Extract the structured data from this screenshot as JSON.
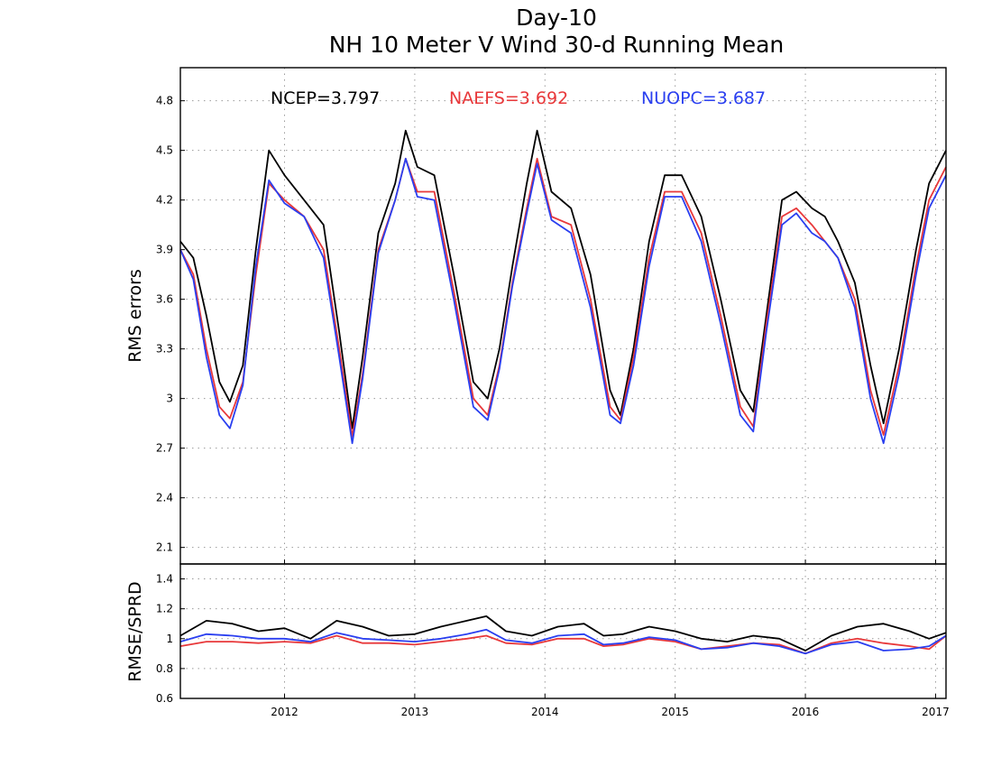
{
  "title_line1": "Day-10",
  "title_line2": "NH 10 Meter V Wind 30-d Running Mean",
  "chart_data": [
    {
      "type": "line",
      "ylabel": "RMS errors",
      "ylim": [
        2.0,
        5.0
      ],
      "yticks": [
        "2.1",
        "2.4",
        "2.7",
        "3",
        "3.3",
        "3.6",
        "3.9",
        "4.2",
        "4.5",
        "4.8"
      ],
      "xlim": [
        2011.2,
        2017.08
      ],
      "grid": true,
      "legend_placement": "top",
      "legend": [
        {
          "label": "NCEP=3.797",
          "color": "#000000"
        },
        {
          "label": "NAEFS=3.692",
          "color": "#e8383a"
        },
        {
          "label": "NUOPC=3.687",
          "color": "#2a3ff0"
        }
      ],
      "series": [
        {
          "name": "NCEP",
          "color": "#000000",
          "x": [
            2011.2,
            2011.3,
            2011.4,
            2011.5,
            2011.58,
            2011.68,
            2011.78,
            2011.88,
            2012.0,
            2012.15,
            2012.3,
            2012.42,
            2012.52,
            2012.6,
            2012.72,
            2012.85,
            2012.93,
            2013.02,
            2013.15,
            2013.3,
            2013.45,
            2013.56,
            2013.65,
            2013.75,
            2013.86,
            2013.94,
            2014.05,
            2014.2,
            2014.35,
            2014.5,
            2014.58,
            2014.68,
            2014.8,
            2014.92,
            2015.05,
            2015.2,
            2015.35,
            2015.5,
            2015.6,
            2015.7,
            2015.82,
            2015.93,
            2016.05,
            2016.15,
            2016.25,
            2016.38,
            2016.5,
            2016.6,
            2016.72,
            2016.85,
            2016.95,
            2017.08
          ],
          "values": [
            3.95,
            3.85,
            3.5,
            3.1,
            2.98,
            3.2,
            3.9,
            4.5,
            4.35,
            4.2,
            4.05,
            3.4,
            2.82,
            3.25,
            4.0,
            4.3,
            4.62,
            4.4,
            4.35,
            3.75,
            3.1,
            3.0,
            3.3,
            3.8,
            4.3,
            4.62,
            4.25,
            4.15,
            3.75,
            3.05,
            2.9,
            3.3,
            3.95,
            4.35,
            4.35,
            4.1,
            3.6,
            3.05,
            2.92,
            3.5,
            4.2,
            4.25,
            4.15,
            4.1,
            3.95,
            3.7,
            3.2,
            2.85,
            3.3,
            3.9,
            4.3,
            4.5
          ]
        },
        {
          "name": "NAEFS",
          "color": "#e8383a",
          "x": [
            2011.2,
            2011.3,
            2011.4,
            2011.5,
            2011.58,
            2011.68,
            2011.78,
            2011.88,
            2012.0,
            2012.15,
            2012.3,
            2012.42,
            2012.52,
            2012.6,
            2012.72,
            2012.85,
            2012.93,
            2013.02,
            2013.15,
            2013.3,
            2013.45,
            2013.56,
            2013.65,
            2013.75,
            2013.86,
            2013.94,
            2014.05,
            2014.2,
            2014.35,
            2014.5,
            2014.58,
            2014.68,
            2014.8,
            2014.92,
            2015.05,
            2015.2,
            2015.35,
            2015.5,
            2015.6,
            2015.7,
            2015.82,
            2015.93,
            2016.05,
            2016.15,
            2016.25,
            2016.38,
            2016.5,
            2016.6,
            2016.72,
            2016.85,
            2016.95,
            2017.08
          ],
          "values": [
            3.9,
            3.75,
            3.3,
            2.95,
            2.88,
            3.1,
            3.75,
            4.3,
            4.2,
            4.1,
            3.9,
            3.3,
            2.77,
            3.15,
            3.9,
            4.2,
            4.45,
            4.25,
            4.25,
            3.65,
            3.0,
            2.9,
            3.2,
            3.7,
            4.15,
            4.45,
            4.1,
            4.05,
            3.6,
            2.95,
            2.87,
            3.25,
            3.85,
            4.25,
            4.25,
            4.0,
            3.5,
            2.95,
            2.83,
            3.45,
            4.1,
            4.15,
            4.05,
            3.95,
            3.85,
            3.6,
            3.05,
            2.78,
            3.2,
            3.8,
            4.2,
            4.4
          ]
        },
        {
          "name": "NUOPC",
          "color": "#2a3ff0",
          "x": [
            2011.2,
            2011.3,
            2011.4,
            2011.5,
            2011.58,
            2011.68,
            2011.78,
            2011.88,
            2012.0,
            2012.15,
            2012.3,
            2012.42,
            2012.52,
            2012.6,
            2012.72,
            2012.85,
            2012.93,
            2013.02,
            2013.15,
            2013.3,
            2013.45,
            2013.56,
            2013.65,
            2013.75,
            2013.86,
            2013.94,
            2014.05,
            2014.2,
            2014.35,
            2014.5,
            2014.58,
            2014.68,
            2014.8,
            2014.92,
            2015.05,
            2015.2,
            2015.35,
            2015.5,
            2015.6,
            2015.7,
            2015.82,
            2015.93,
            2016.05,
            2016.15,
            2016.25,
            2016.38,
            2016.5,
            2016.6,
            2016.72,
            2016.85,
            2016.95,
            2017.08
          ],
          "values": [
            3.9,
            3.72,
            3.25,
            2.9,
            2.82,
            3.08,
            3.8,
            4.32,
            4.18,
            4.1,
            3.85,
            3.25,
            2.73,
            3.12,
            3.88,
            4.2,
            4.45,
            4.22,
            4.2,
            3.6,
            2.95,
            2.87,
            3.18,
            3.68,
            4.12,
            4.42,
            4.08,
            4.0,
            3.55,
            2.9,
            2.85,
            3.2,
            3.8,
            4.22,
            4.22,
            3.95,
            3.45,
            2.9,
            2.8,
            3.4,
            4.05,
            4.12,
            4.0,
            3.95,
            3.85,
            3.55,
            3.0,
            2.73,
            3.15,
            3.75,
            4.15,
            4.35
          ]
        }
      ]
    },
    {
      "type": "line",
      "ylabel": "RMSE/SPRD",
      "ylim": [
        0.6,
        1.5
      ],
      "yticks": [
        "0.6",
        "0.8",
        "1",
        "1.2",
        "1.4"
      ],
      "xlim": [
        2011.2,
        2017.08
      ],
      "xticks": [
        "2012",
        "2013",
        "2014",
        "2015",
        "2016",
        "2017"
      ],
      "grid": true,
      "series": [
        {
          "name": "NCEP",
          "color": "#000000",
          "x": [
            2011.2,
            2011.4,
            2011.6,
            2011.8,
            2012.0,
            2012.2,
            2012.4,
            2012.6,
            2012.8,
            2013.0,
            2013.2,
            2013.4,
            2013.55,
            2013.7,
            2013.9,
            2014.1,
            2014.3,
            2014.45,
            2014.6,
            2014.8,
            2015.0,
            2015.2,
            2015.4,
            2015.6,
            2015.8,
            2016.0,
            2016.2,
            2016.4,
            2016.6,
            2016.8,
            2016.95,
            2017.08
          ],
          "values": [
            1.02,
            1.12,
            1.1,
            1.05,
            1.07,
            1.0,
            1.12,
            1.08,
            1.02,
            1.03,
            1.08,
            1.12,
            1.15,
            1.05,
            1.02,
            1.08,
            1.1,
            1.02,
            1.03,
            1.08,
            1.05,
            1.0,
            0.98,
            1.02,
            1.0,
            0.92,
            1.02,
            1.08,
            1.1,
            1.05,
            1.0,
            1.04
          ]
        },
        {
          "name": "NAEFS",
          "color": "#e8383a",
          "x": [
            2011.2,
            2011.4,
            2011.6,
            2011.8,
            2012.0,
            2012.2,
            2012.4,
            2012.6,
            2012.8,
            2013.0,
            2013.2,
            2013.4,
            2013.55,
            2013.7,
            2013.9,
            2014.1,
            2014.3,
            2014.45,
            2014.6,
            2014.8,
            2015.0,
            2015.2,
            2015.4,
            2015.6,
            2015.8,
            2016.0,
            2016.2,
            2016.4,
            2016.6,
            2016.8,
            2016.95,
            2017.08
          ],
          "values": [
            0.95,
            0.98,
            0.98,
            0.97,
            0.98,
            0.97,
            1.02,
            0.97,
            0.97,
            0.96,
            0.98,
            1.0,
            1.02,
            0.97,
            0.96,
            1.0,
            1.0,
            0.95,
            0.96,
            1.0,
            0.98,
            0.93,
            0.95,
            0.97,
            0.96,
            0.9,
            0.97,
            1.0,
            0.97,
            0.95,
            0.93,
            1.02
          ]
        },
        {
          "name": "NUOPC",
          "color": "#2a3ff0",
          "x": [
            2011.2,
            2011.4,
            2011.6,
            2011.8,
            2012.0,
            2012.2,
            2012.4,
            2012.6,
            2012.8,
            2013.0,
            2013.2,
            2013.4,
            2013.55,
            2013.7,
            2013.9,
            2014.1,
            2014.3,
            2014.45,
            2014.6,
            2014.8,
            2015.0,
            2015.2,
            2015.4,
            2015.6,
            2015.8,
            2016.0,
            2016.2,
            2016.4,
            2016.6,
            2016.8,
            2016.95,
            2017.08
          ],
          "values": [
            0.98,
            1.03,
            1.02,
            1.0,
            1.0,
            0.98,
            1.04,
            1.0,
            0.99,
            0.98,
            1.0,
            1.03,
            1.06,
            0.99,
            0.97,
            1.02,
            1.03,
            0.96,
            0.97,
            1.01,
            0.99,
            0.93,
            0.94,
            0.97,
            0.95,
            0.9,
            0.96,
            0.98,
            0.92,
            0.93,
            0.95,
            1.02
          ]
        }
      ]
    }
  ]
}
